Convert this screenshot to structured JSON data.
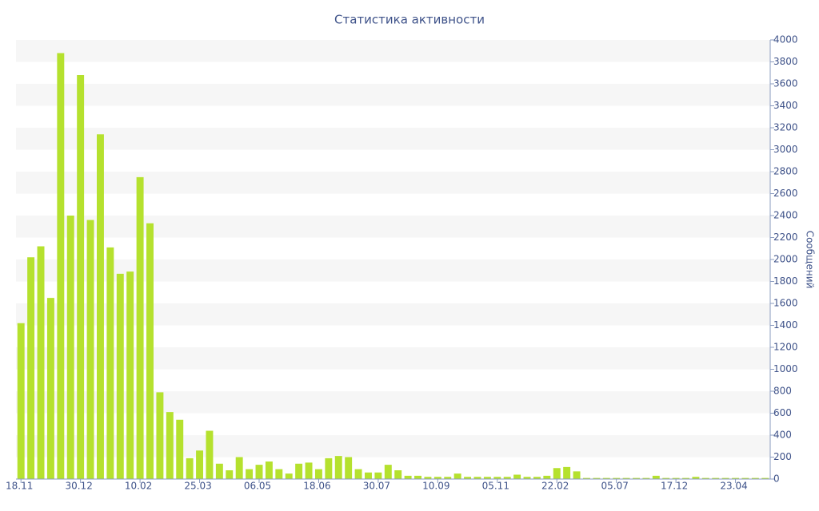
{
  "chart_data": {
    "type": "bar",
    "title": "Статистика активности",
    "y_axis_label": "Сообщений",
    "categories": [
      "18.11",
      null,
      null,
      null,
      null,
      null,
      "30.12",
      null,
      null,
      null,
      null,
      null,
      "10.02",
      null,
      null,
      null,
      null,
      null,
      "25.03",
      null,
      null,
      null,
      null,
      null,
      "06.05",
      null,
      null,
      null,
      null,
      null,
      "18.06",
      null,
      null,
      null,
      null,
      null,
      "30.07",
      null,
      null,
      null,
      null,
      null,
      "10.09",
      null,
      null,
      null,
      null,
      null,
      "05.11",
      null,
      null,
      null,
      null,
      null,
      "22.02",
      null,
      null,
      null,
      null,
      null,
      "05.07",
      null,
      null,
      null,
      null,
      null,
      "17.12",
      null,
      null,
      null,
      null,
      null,
      "23.04",
      null,
      null,
      null
    ],
    "values": [
      1420,
      2020,
      2120,
      1650,
      3880,
      2400,
      3680,
      2360,
      3140,
      2110,
      1870,
      1890,
      2750,
      2330,
      790,
      610,
      540,
      190,
      260,
      440,
      140,
      80,
      200,
      90,
      130,
      160,
      90,
      50,
      140,
      150,
      90,
      190,
      210,
      200,
      90,
      60,
      60,
      130,
      80,
      30,
      30,
      20,
      20,
      20,
      50,
      20,
      20,
      20,
      20,
      20,
      40,
      20,
      20,
      30,
      100,
      110,
      70,
      10,
      10,
      10,
      10,
      10,
      10,
      10,
      30,
      10,
      10,
      10,
      20,
      10,
      10,
      10,
      10,
      10,
      10,
      10
    ],
    "color": "#b5e12e",
    "ylim": [
      0,
      4000
    ],
    "yticks": [
      0,
      200,
      400,
      600,
      800,
      1000,
      1200,
      1400,
      1600,
      1800,
      2000,
      2200,
      2400,
      2600,
      2800,
      3000,
      3200,
      3400,
      3600,
      3800,
      4000
    ],
    "y_axis_side": "right",
    "grid": "bands"
  }
}
